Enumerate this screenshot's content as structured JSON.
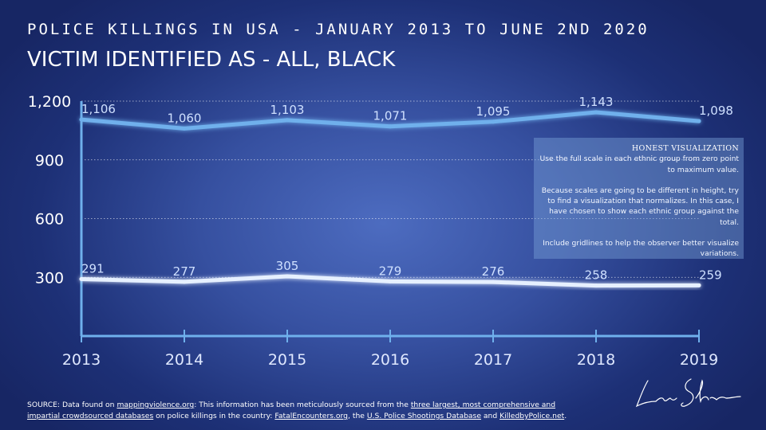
{
  "header": {
    "title": "POLICE KILLINGS IN USA - JANUARY 2013 TO JUNE 2ND 2020",
    "subtitle": "VICTIM IDENTIFIED AS - ALL, BLACK"
  },
  "chart_data": {
    "type": "line",
    "x": [
      "2013",
      "2014",
      "2015",
      "2016",
      "2017",
      "2018",
      "2019"
    ],
    "series": [
      {
        "values": [
          1106,
          1060,
          1103,
          1071,
          1095,
          1143,
          1098
        ],
        "labels": [
          "1,106",
          "1,060",
          "1,103",
          "1,071",
          "1,095",
          "1,143",
          "1,098"
        ],
        "color": "#6fb0ec"
      },
      {
        "values": [
          291,
          277,
          305,
          279,
          276,
          258,
          259
        ],
        "labels": [
          "291",
          "277",
          "305",
          "279",
          "276",
          "258",
          "259"
        ],
        "color": "#e6f0ff"
      }
    ],
    "yticks": [
      300,
      600,
      900,
      1200
    ],
    "ytick_labels": [
      "300",
      "600",
      "900",
      "1,200"
    ],
    "ylim": [
      0,
      1200
    ],
    "grid": true,
    "grid_color": "#ffffff",
    "axis_color": "#6fb0ec"
  },
  "info_box": {
    "title": "HONEST VISUALIZATION",
    "para1": "Use the full scale in each ethnic group from zero point to maximum value.",
    "para2": "Because scales are going to be different in height, try to find a visualization that normalizes. In this case, I have chosen to show each ethnic group against the total.",
    "para3": "Include gridlines to help  the observer better visualize variations."
  },
  "source": {
    "part1": "SOURCE: Data found on ",
    "link1": "mappingviolence.org",
    "part2": ": This information has been meticulously sourced from the ",
    "link2": "three largest, most comprehensive and impartial crowdsourced databases",
    "part3": " on police killings in the country: ",
    "link3": "FatalEncounters.org",
    "part4": ", the ",
    "link4": "U.S. Police Shootings Database",
    "part5": " and ",
    "link5": "KilledbyPolice.net",
    "part6": "."
  },
  "signature_icon": "handwritten-signature"
}
